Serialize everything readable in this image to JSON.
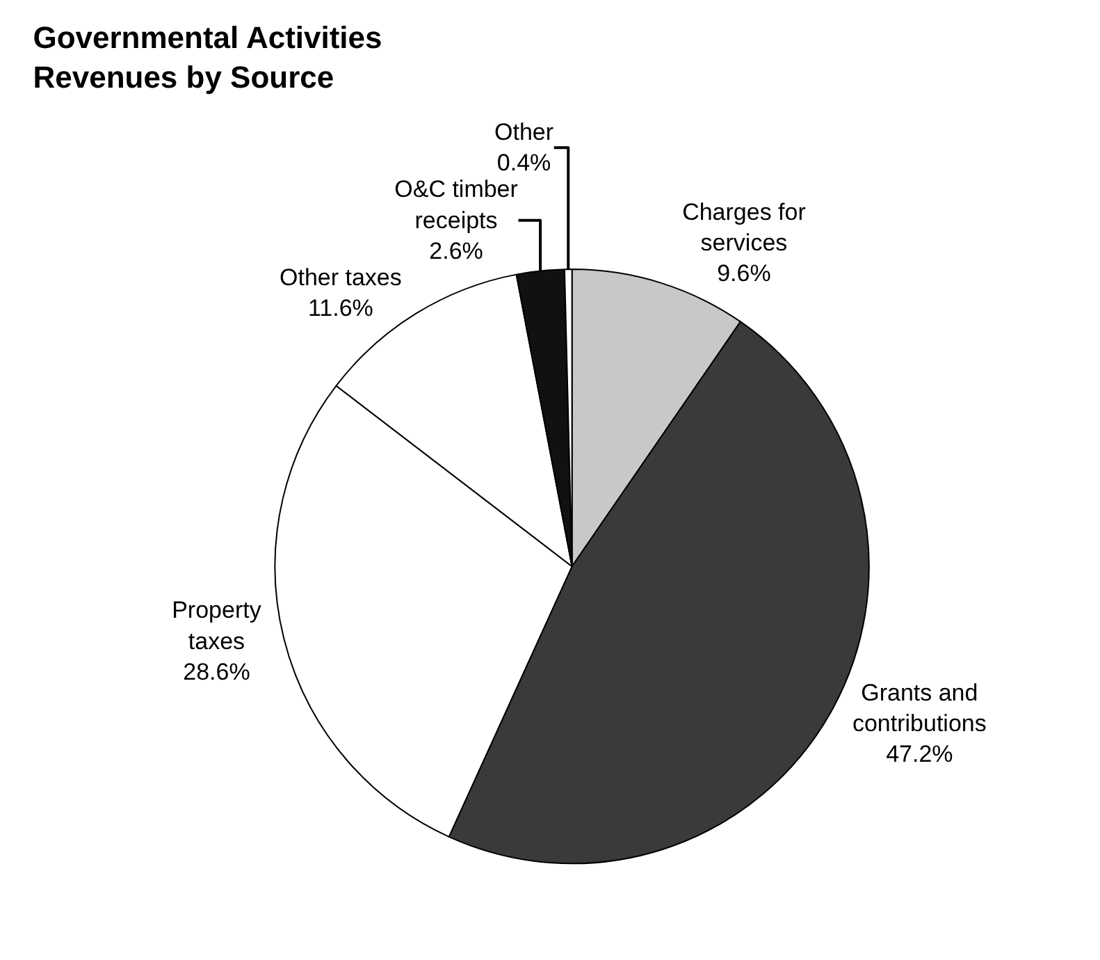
{
  "chart_data": {
    "type": "pie",
    "title": "Governmental Activities\nRevenues by Source",
    "categories": [
      "Charges for services",
      "Grants and contributions",
      "Property taxes",
      "Other taxes",
      "O&C timber receipts",
      "Other"
    ],
    "values": [
      9.6,
      47.2,
      28.6,
      11.6,
      2.6,
      0.4
    ],
    "value_labels": [
      "9.6%",
      "47.2%",
      "28.6%",
      "11.6%",
      "2.6%",
      "0.4%"
    ],
    "colors": [
      "#c8c8c8",
      "#3a3a3a",
      "#ffffff",
      "#ffffff",
      "#111111",
      "#ffffff"
    ],
    "legend": false
  }
}
